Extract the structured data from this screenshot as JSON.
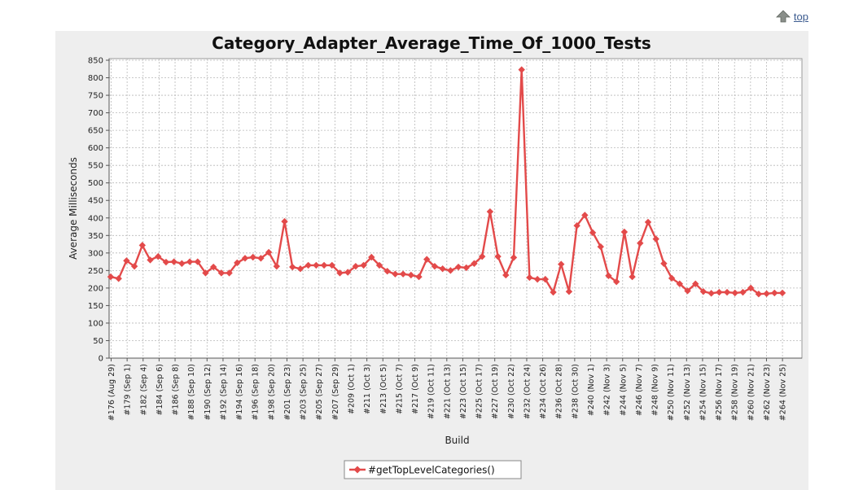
{
  "top_link": {
    "label": "top",
    "icon": "up-arrow-icon"
  },
  "chart_data": {
    "type": "line",
    "title": "Category_Adapter_Average_Time_Of_1000_Tests",
    "xlabel": "Build",
    "ylabel": "Average Milliseconds",
    "ylim": [
      0,
      850
    ],
    "yticks": [
      0,
      50,
      100,
      150,
      200,
      250,
      300,
      350,
      400,
      450,
      500,
      550,
      600,
      650,
      700,
      750,
      800,
      850
    ],
    "grid": true,
    "legend_position": "bottom",
    "colors": {
      "series": "#e34a4a",
      "plot_bg": "#ffffff",
      "panel_bg": "#eeeeee",
      "grid": "#b8b8b8"
    },
    "x_tick_labels": [
      "#176 (Aug 29)",
      "#179 (Sep 1)",
      "#182 (Sep 4)",
      "#184 (Sep 6)",
      "#186 (Sep 8)",
      "#188 (Sep 10)",
      "#190 (Sep 12)",
      "#192 (Sep 14)",
      "#194 (Sep 16)",
      "#196 (Sep 18)",
      "#198 (Sep 20)",
      "#201 (Sep 23)",
      "#203 (Sep 25)",
      "#205 (Sep 27)",
      "#207 (Sep 29)",
      "#209 (Oct 1)",
      "#211 (Oct 3)",
      "#213 (Oct 5)",
      "#215 (Oct 7)",
      "#217 (Oct 9)",
      "#219 (Oct 11)",
      "#221 (Oct 13)",
      "#223 (Oct 15)",
      "#225 (Oct 17)",
      "#227 (Oct 19)",
      "#230 (Oct 22)",
      "#232 (Oct 24)",
      "#234 (Oct 26)",
      "#236 (Oct 28)",
      "#238 (Oct 30)",
      "#240 (Nov 1)",
      "#242 (Nov 3)",
      "#244 (Nov 5)",
      "#246 (Nov 7)",
      "#248 (Nov 9)",
      "#250 (Nov 11)",
      "#252 (Nov 13)",
      "#254 (Nov 15)",
      "#256 (Nov 17)",
      "#258 (Nov 19)",
      "#260 (Nov 21)",
      "#262 (Nov 23)",
      "#264 (Nov 25)"
    ],
    "series": [
      {
        "name": "#getTopLevelCategories()",
        "values": [
          232,
          227,
          278,
          262,
          322,
          280,
          290,
          274,
          275,
          270,
          275,
          275,
          243,
          260,
          243,
          243,
          272,
          285,
          288,
          285,
          302,
          262,
          390,
          260,
          255,
          265,
          265,
          265,
          265,
          243,
          245,
          262,
          265,
          288,
          265,
          248,
          240,
          240,
          237,
          232,
          282,
          262,
          255,
          250,
          260,
          258,
          270,
          290,
          418,
          290,
          237,
          287,
          823,
          230,
          225,
          225,
          188,
          268,
          190,
          378,
          408,
          358,
          318,
          235,
          218,
          360,
          232,
          328,
          388,
          340,
          270,
          228,
          212,
          192,
          212,
          190,
          185,
          188,
          188,
          186,
          188,
          200,
          183,
          184,
          186,
          186
        ]
      }
    ]
  }
}
